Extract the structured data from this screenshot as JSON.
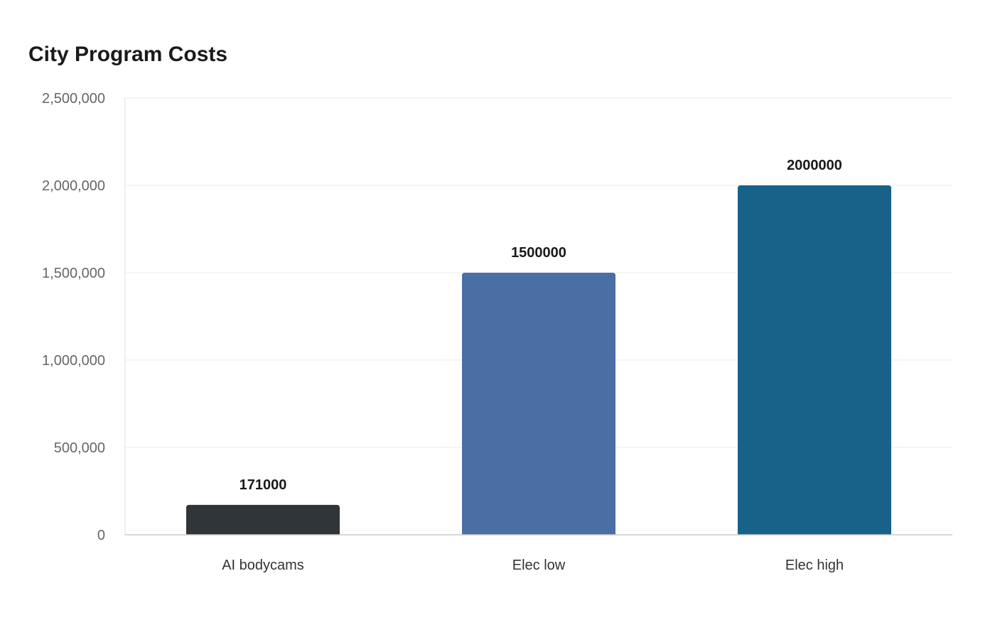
{
  "chart_data": {
    "type": "bar",
    "title": "City Program Costs",
    "xlabel": "",
    "ylabel": "",
    "categories": [
      "AI bodycams",
      "Elec low",
      "Elec high"
    ],
    "values": [
      171000,
      1500000,
      2000000
    ],
    "data_labels": [
      "171000",
      "1500000",
      "2000000"
    ],
    "colors": [
      "#2f3538",
      "#4a6fa5",
      "#176289"
    ],
    "ylim": [
      0,
      2500000
    ],
    "yticks": [
      0,
      500000,
      1000000,
      1500000,
      2000000,
      2500000
    ],
    "ytick_labels": [
      "0",
      "500,000",
      "1,000,000",
      "1,500,000",
      "2,000,000",
      "2,500,000"
    ],
    "grid": true,
    "legend": "none"
  }
}
